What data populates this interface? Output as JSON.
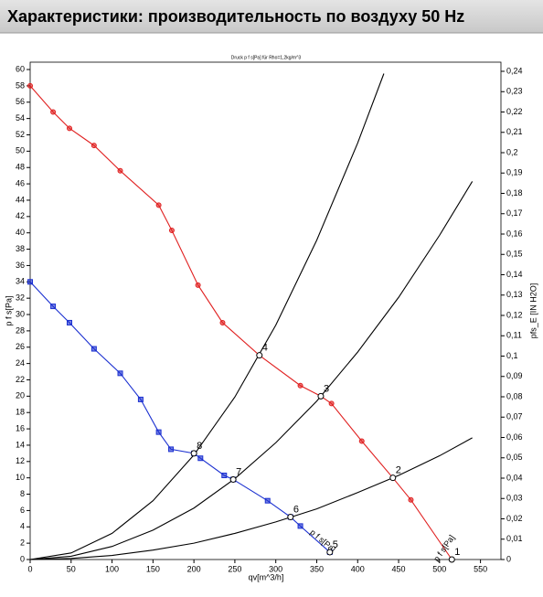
{
  "header": {
    "title": "Характеристики: производительность по воздуху 50 Hz"
  },
  "chart_data": {
    "type": "line",
    "title": "Druck p f s[Pa] für Rho=1,2kg/m^3",
    "x_label": "qv[m^3/h]",
    "y_label": "p f s[Pa]",
    "y2_label": "pfs_E [IN H2O]",
    "xlim": [
      0,
      575
    ],
    "ylim": [
      0,
      60.9
    ],
    "y2lim": [
      0,
      0.2445
    ],
    "xticks": [
      0,
      50,
      100,
      150,
      200,
      250,
      300,
      350,
      400,
      450,
      500,
      550
    ],
    "yticks": [
      0,
      2,
      4,
      6,
      8,
      10,
      12,
      14,
      16,
      18,
      20,
      22,
      24,
      26,
      28,
      30,
      32,
      34,
      36,
      38,
      40,
      42,
      44,
      46,
      48,
      50,
      52,
      54,
      56,
      58,
      60
    ],
    "y2ticks": [
      0,
      {
        "value": 0.01,
        "label": "0,01"
      },
      {
        "value": 0.02,
        "label": "0,02"
      },
      {
        "value": 0.03,
        "label": "0,03"
      },
      {
        "value": 0.04,
        "label": "0,04"
      },
      {
        "value": 0.05,
        "label": "0,05"
      },
      {
        "value": 0.06,
        "label": "0,06"
      },
      {
        "value": 0.07,
        "label": "0,07"
      },
      {
        "value": 0.08,
        "label": "0,08"
      },
      {
        "value": 0.09,
        "label": "0,09"
      },
      {
        "value": 0.1,
        "label": "0,1"
      },
      {
        "value": 0.11,
        "label": "0,11"
      },
      {
        "value": 0.12,
        "label": "0,12"
      },
      {
        "value": 0.13,
        "label": "0,13"
      },
      {
        "value": 0.14,
        "label": "0,14"
      },
      {
        "value": 0.15,
        "label": "0,15"
      },
      {
        "value": 0.16,
        "label": "0,16"
      },
      {
        "value": 0.17,
        "label": "0,17"
      },
      {
        "value": 0.18,
        "label": "0,18"
      },
      {
        "value": 0.19,
        "label": "0,19"
      },
      {
        "value": 0.2,
        "label": "0,2"
      },
      {
        "value": 0.21,
        "label": "0,21"
      },
      {
        "value": 0.22,
        "label": "0,22"
      },
      {
        "value": 0.23,
        "label": "0,23"
      },
      {
        "value": 0.24,
        "label": "0,24"
      }
    ],
    "grid": false,
    "series": [
      {
        "name": "p f s[Pa]",
        "color": "#e02020",
        "marker": "circle",
        "x": [
          0,
          28,
          48,
          78,
          110,
          157,
          173,
          205,
          235,
          280,
          330,
          355,
          368,
          405,
          443,
          465,
          515
        ],
        "values": [
          58,
          54.8,
          52.8,
          50.7,
          47.6,
          43.4,
          40.3,
          33.6,
          29,
          25,
          21.3,
          20,
          19.1,
          14.5,
          10,
          7.3,
          0
        ]
      },
      {
        "name": "p f s[Pa]",
        "color": "#1a2fd0",
        "marker": "square",
        "x": [
          0,
          28,
          48,
          78,
          110,
          135,
          157,
          172,
          200,
          208,
          237,
          248,
          290,
          318,
          330,
          366
        ],
        "values": [
          34,
          31,
          29,
          25.8,
          22.8,
          19.6,
          15.6,
          13.5,
          13,
          12.4,
          10.3,
          9.8,
          7.2,
          5.2,
          4.1,
          0.9
        ]
      },
      {
        "color": "#000000",
        "x": [
          0,
          50,
          100,
          150,
          200,
          250,
          300,
          350,
          400,
          432
        ],
        "values": [
          0,
          0.8,
          3.2,
          7.2,
          12.8,
          19.9,
          28.7,
          39.1,
          51,
          59.5
        ]
      },
      {
        "color": "#000000",
        "x": [
          0,
          50,
          100,
          150,
          200,
          250,
          300,
          350,
          400,
          450,
          500,
          540
        ],
        "values": [
          0,
          0.4,
          1.6,
          3.6,
          6.3,
          9.9,
          14.3,
          19.4,
          25.4,
          32.1,
          39.7,
          46.3
        ]
      },
      {
        "color": "#000000",
        "x": [
          0,
          50,
          100,
          150,
          200,
          250,
          300,
          350,
          400,
          450,
          500,
          540
        ],
        "values": [
          0,
          0.13,
          0.5,
          1.15,
          2.0,
          3.2,
          4.6,
          6.2,
          8.2,
          10.3,
          12.7,
          14.9
        ]
      }
    ],
    "operating_points": {
      "labels": [
        "1",
        "2",
        "3",
        "4",
        "5",
        "6",
        "7",
        "8"
      ],
      "x": [
        515,
        443,
        355,
        280,
        366,
        318,
        248,
        200
      ],
      "values": [
        0,
        10,
        20,
        25,
        0.9,
        5.2,
        9.8,
        13
      ]
    }
  }
}
